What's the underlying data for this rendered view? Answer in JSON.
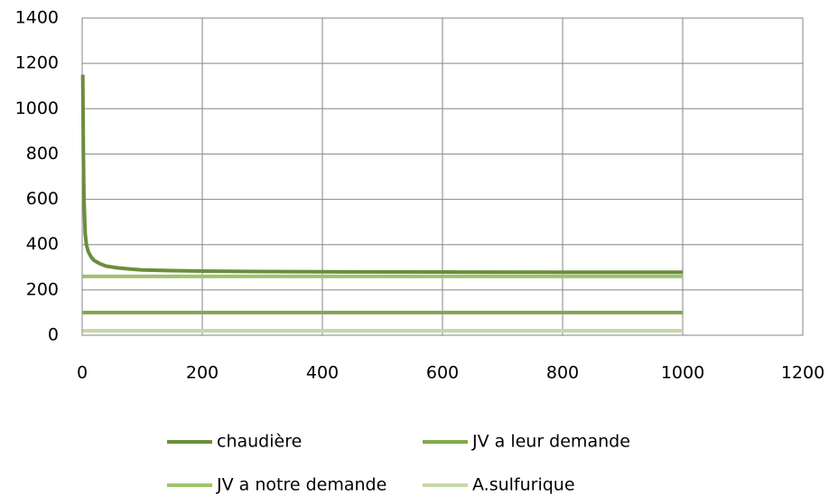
{
  "chart_data": {
    "type": "line",
    "x": [
      1,
      2,
      3,
      5,
      7,
      10,
      15,
      20,
      30,
      40,
      60,
      80,
      100,
      150,
      200,
      300,
      400,
      600,
      800,
      1000
    ],
    "series": [
      {
        "name": "chaudière",
        "color": "#6b8e3c",
        "values": [
          1150,
          800,
          600,
          450,
          400,
          370,
          345,
          330,
          315,
          305,
          297,
          292,
          288,
          285,
          283,
          281,
          280,
          279,
          278,
          278
        ]
      },
      {
        "name": "JV a leur demande",
        "color": "#80a84c",
        "values": [
          100,
          100,
          100,
          100,
          100,
          100,
          100,
          100,
          100,
          100,
          100,
          100,
          100,
          100,
          100,
          100,
          100,
          100,
          100,
          100
        ]
      },
      {
        "name": "JV a notre demande",
        "color": "#9ec26c",
        "values": [
          260,
          260,
          260,
          260,
          260,
          260,
          260,
          260,
          260,
          260,
          260,
          260,
          260,
          260,
          260,
          260,
          260,
          260,
          260,
          260
        ]
      },
      {
        "name": "A.sulfurique",
        "color": "#c5d8a9",
        "values": [
          20,
          20,
          20,
          20,
          20,
          20,
          20,
          20,
          20,
          20,
          20,
          20,
          20,
          20,
          20,
          20,
          20,
          20,
          20,
          20
        ]
      }
    ],
    "xlim": [
      0,
      1200
    ],
    "xticks": [
      0,
      200,
      400,
      600,
      800,
      1000,
      1200
    ],
    "ylim": [
      0,
      1400
    ],
    "yticks": [
      0,
      200,
      400,
      600,
      800,
      1000,
      1200,
      1400
    ],
    "grid": true,
    "legend": "bottom"
  }
}
